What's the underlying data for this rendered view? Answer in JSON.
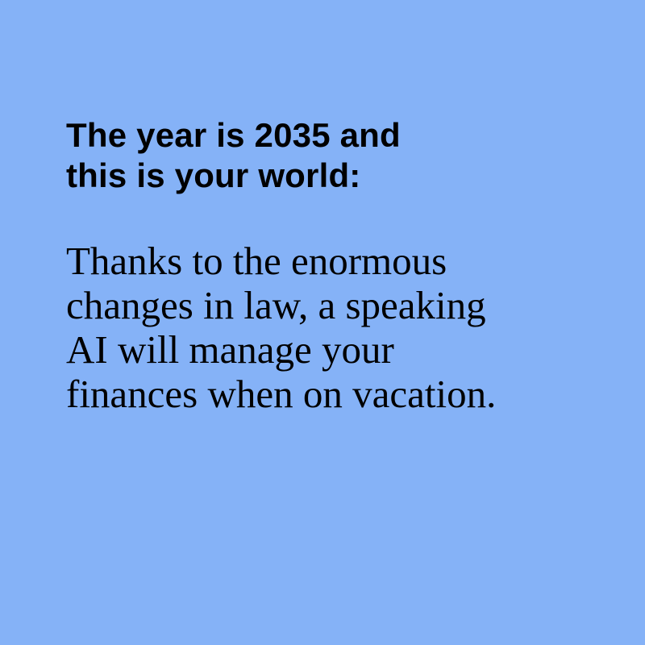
{
  "card": {
    "background_color": "#85b2f7",
    "text_color": "#000000",
    "heading_lines": [
      "The year is 2035 and",
      "this is your world:"
    ],
    "body_lines": [
      "Thanks to the enormous",
      "changes in law, a speaking",
      "AI will manage your",
      "finances when on vacation."
    ]
  }
}
